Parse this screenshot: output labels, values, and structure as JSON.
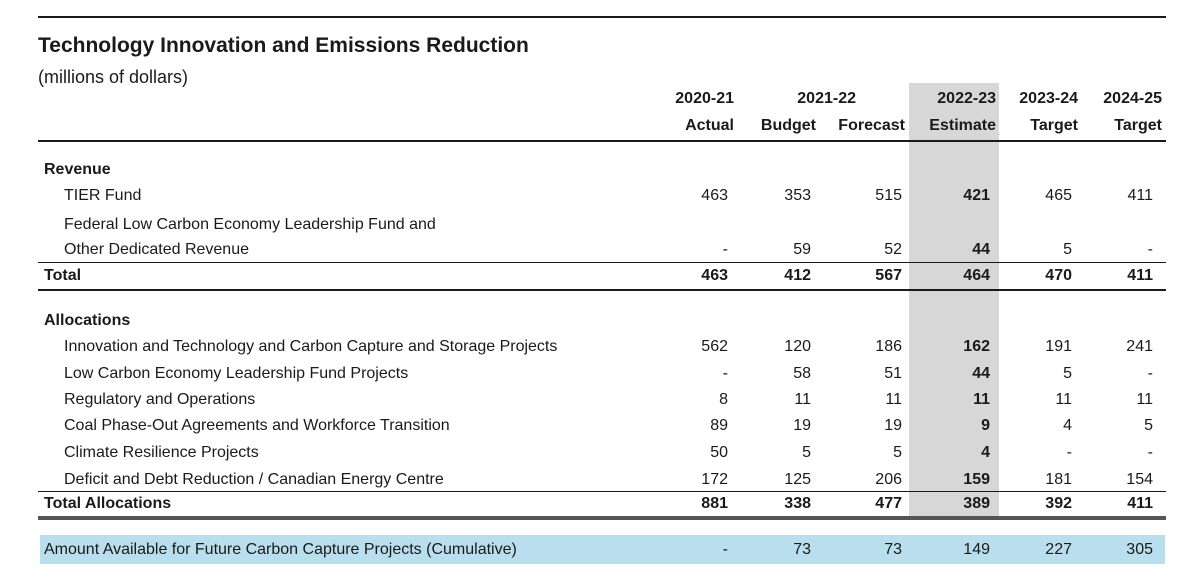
{
  "title": "Technology Innovation and Emissions Reduction",
  "subtitle": "(millions of dollars)",
  "header": {
    "years": [
      "2020-21",
      "2021-22",
      "2022-23",
      "2023-24",
      "2024-25"
    ],
    "labels": [
      "Actual",
      "Budget",
      "Forecast",
      "Estimate",
      "Target",
      "Target"
    ]
  },
  "revenue": {
    "heading": "Revenue",
    "rows": [
      {
        "label": "TIER Fund",
        "values": [
          "463",
          "353",
          "515",
          "421",
          "465",
          "411"
        ]
      },
      {
        "label_line1": "Federal Low Carbon Economy Leadership Fund and",
        "label": "Other Dedicated Revenue",
        "values": [
          "-",
          "59",
          "52",
          "44",
          "5",
          "-"
        ]
      }
    ],
    "total": {
      "label": "Total",
      "values": [
        "463",
        "412",
        "567",
        "464",
        "470",
        "411"
      ]
    }
  },
  "allocations": {
    "heading": "Allocations",
    "rows": [
      {
        "label": "Innovation and Technology and Carbon Capture and Storage Projects",
        "values": [
          "562",
          "120",
          "186",
          "162",
          "191",
          "241"
        ]
      },
      {
        "label": "Low Carbon Economy Leadership Fund Projects",
        "values": [
          "-",
          "58",
          "51",
          "44",
          "5",
          "-"
        ]
      },
      {
        "label": "Regulatory and Operations",
        "values": [
          "8",
          "11",
          "11",
          "11",
          "11",
          "11"
        ]
      },
      {
        "label": "Coal Phase-Out Agreements and Workforce Transition",
        "values": [
          "89",
          "19",
          "19",
          "9",
          "4",
          "5"
        ]
      },
      {
        "label": "Climate Resilience Projects",
        "values": [
          "50",
          "5",
          "5",
          "4",
          "-",
          "-"
        ]
      },
      {
        "label": "Deficit and Debt Reduction / Canadian Energy Centre",
        "values": [
          "172",
          "125",
          "206",
          "159",
          "181",
          "154"
        ]
      }
    ],
    "total": {
      "label": "Total Allocations",
      "values": [
        "881",
        "338",
        "477",
        "389",
        "392",
        "411"
      ]
    }
  },
  "future": {
    "label": "Amount Available for Future Carbon Capture Projects (Cumulative)",
    "values": [
      "-",
      "73",
      "73",
      "149",
      "227",
      "305"
    ]
  },
  "colors": {
    "shade": "#d7d7d7",
    "highlight": "#b9dfee",
    "rule": "#1a1a1a"
  }
}
